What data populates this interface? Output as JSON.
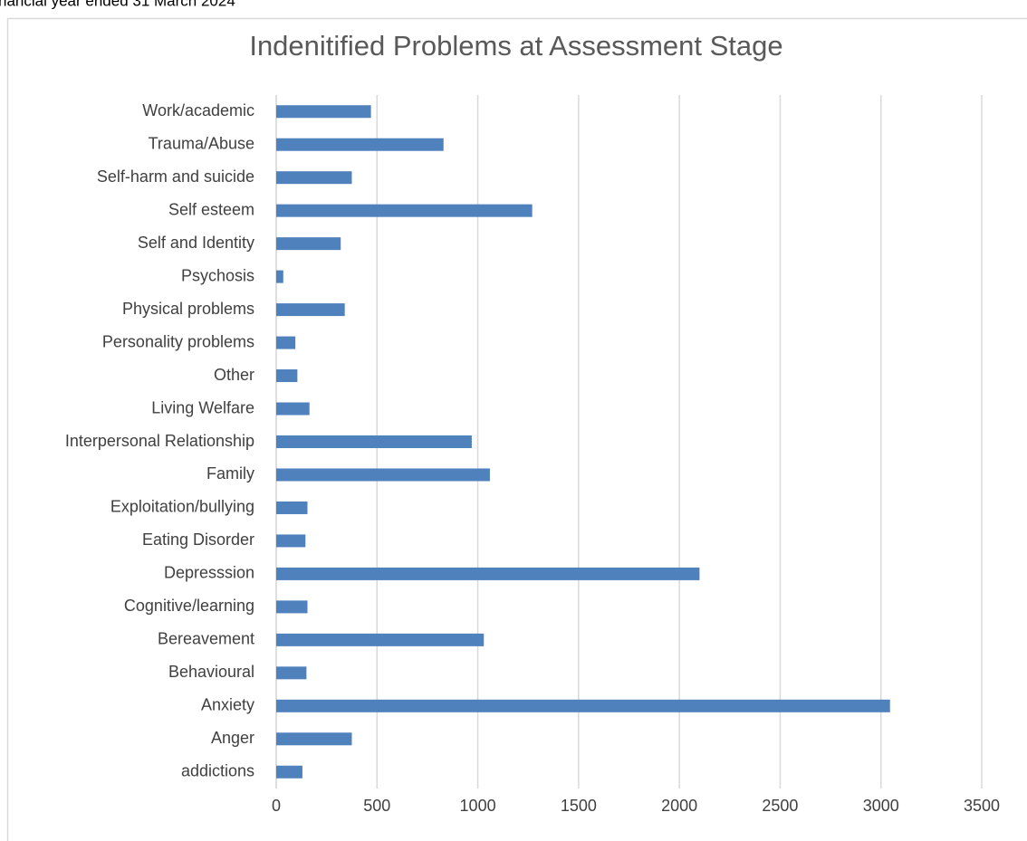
{
  "caption": "nancial year ended 31 March 2024",
  "chart_data": {
    "type": "barh",
    "title": "Indenitified Problems at Assessment Stage",
    "categories": [
      "addictions",
      "Anger",
      "Anxiety",
      "Behavioural",
      "Bereavement",
      "Cognitive/learning",
      "Depresssion",
      "Eating Disorder",
      "Exploitation/bullying",
      "Family",
      "Interpersonal Relationship",
      "Living Welfare",
      "Other",
      "Personality problems",
      "Physical problems",
      "Psychosis",
      "Self and Identity",
      "Self esteem",
      "Self-harm and suicide",
      "Trauma/Abuse",
      "Work/academic"
    ],
    "values": [
      130,
      375,
      3045,
      150,
      1030,
      155,
      2100,
      145,
      155,
      1060,
      970,
      165,
      105,
      95,
      340,
      35,
      320,
      1270,
      375,
      830,
      470
    ],
    "color": "#4f81bd",
    "xlim": [
      0,
      3500
    ],
    "xticks": [
      0,
      500,
      1000,
      1500,
      2000,
      2500,
      3000,
      3500
    ],
    "grid": true
  }
}
